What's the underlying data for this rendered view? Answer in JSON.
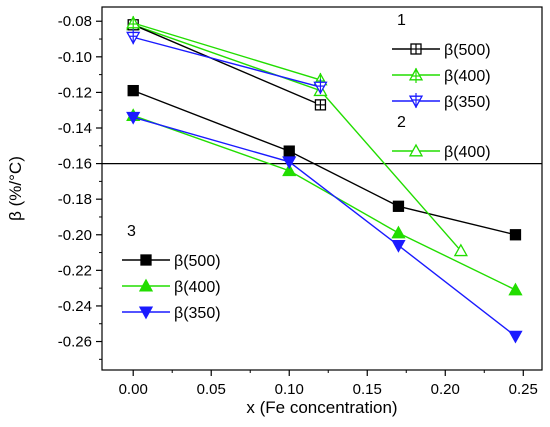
{
  "chart_data": {
    "type": "line",
    "xlabel": "x (Fe concentration)",
    "ylabel": "β (%/°C)",
    "xlim": [
      -0.02,
      0.262
    ],
    "ylim": [
      -0.276,
      -0.072
    ],
    "x_ticks": [
      0.0,
      0.05,
      0.1,
      0.15,
      0.2,
      0.25
    ],
    "x_tick_labels": [
      "0.00",
      "0.05",
      "0.10",
      "0.15",
      "0.20",
      "0.25"
    ],
    "y_ticks": [
      -0.08,
      -0.1,
      -0.12,
      -0.14,
      -0.16,
      -0.18,
      -0.2,
      -0.22,
      -0.24,
      -0.26
    ],
    "y_tick_labels": [
      "-0.08",
      "-0.10",
      "-0.12",
      "-0.14",
      "-0.16",
      "-0.18",
      "-0.20",
      "-0.22",
      "-0.24",
      "-0.26"
    ],
    "reference_line": {
      "y": -0.16,
      "color": "#000000"
    },
    "grid": false,
    "series": [
      {
        "name": "β(500)",
        "group": "1",
        "color": "#000000",
        "marker": "square-crossed",
        "x": [
          0.0,
          0.12
        ],
        "y": [
          -0.082,
          -0.127
        ]
      },
      {
        "name": "β(400)",
        "group": "1",
        "color": "#22dd00",
        "marker": "triangle-up-crossed",
        "x": [
          0.0,
          0.12
        ],
        "y": [
          -0.081,
          -0.113
        ]
      },
      {
        "name": "β(350)",
        "group": "1",
        "color": "#1a1aff",
        "marker": "triangle-down-crossed",
        "x": [
          0.0,
          0.12
        ],
        "y": [
          -0.089,
          -0.117
        ]
      },
      {
        "name": "β(400)",
        "group": "2",
        "color": "#22dd00",
        "marker": "triangle-up-open",
        "x": [
          0.0,
          0.12,
          0.21
        ],
        "y": [
          -0.082,
          -0.119,
          -0.209
        ]
      },
      {
        "name": "β(500)",
        "group": "3",
        "color": "#000000",
        "marker": "square-filled",
        "x": [
          0.0,
          0.1,
          0.17,
          0.245
        ],
        "y": [
          -0.119,
          -0.153,
          -0.184,
          -0.2
        ]
      },
      {
        "name": "β(400)",
        "group": "3",
        "color": "#22dd00",
        "marker": "triangle-up-filled",
        "x": [
          0.0,
          0.1,
          0.17,
          0.245
        ],
        "y": [
          -0.133,
          -0.164,
          -0.199,
          -0.231
        ]
      },
      {
        "name": "β(350)",
        "group": "3",
        "color": "#1a1aff",
        "marker": "triangle-down-filled",
        "x": [
          0.0,
          0.1,
          0.17,
          0.245
        ],
        "y": [
          -0.134,
          -0.159,
          -0.206,
          -0.257
        ]
      }
    ],
    "legends": [
      {
        "title": "1",
        "entries": [
          0,
          1,
          2
        ]
      },
      {
        "title": "2",
        "entries": [
          3
        ]
      },
      {
        "title": "3",
        "entries": [
          4,
          5,
          6
        ]
      }
    ]
  }
}
